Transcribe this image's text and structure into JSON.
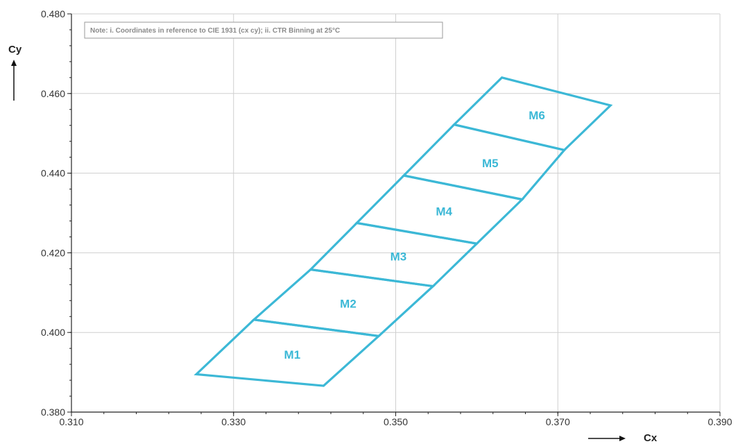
{
  "chart_data": {
    "type": "polygon-bins",
    "note": "Note: i. Coordinates in reference to CIE 1931 (cx cy); ii. CTR Binning at 25°C",
    "xlabel": "Cx",
    "ylabel": "Cy",
    "xlim": [
      0.31,
      0.39
    ],
    "ylim": [
      0.38,
      0.48
    ],
    "x_ticks": [
      "0.310",
      "0.330",
      "0.350",
      "0.370",
      "0.390"
    ],
    "y_ticks": [
      "0.380",
      "0.400",
      "0.420",
      "0.440",
      "0.460",
      "0.480"
    ],
    "grid": true,
    "color": "#3cb8d6",
    "bins": [
      {
        "name": "M1",
        "corners": [
          [
            0.3254,
            0.3895
          ],
          [
            0.3325,
            0.4032
          ],
          [
            0.3479,
            0.3991
          ],
          [
            0.3411,
            0.3866
          ]
        ]
      },
      {
        "name": "M2",
        "corners": [
          [
            0.3325,
            0.4032
          ],
          [
            0.3395,
            0.4158
          ],
          [
            0.3546,
            0.4116
          ],
          [
            0.3479,
            0.3991
          ]
        ]
      },
      {
        "name": "M3",
        "corners": [
          [
            0.3395,
            0.4158
          ],
          [
            0.3452,
            0.4275
          ],
          [
            0.36,
            0.4223
          ],
          [
            0.3546,
            0.4116
          ]
        ]
      },
      {
        "name": "M4",
        "corners": [
          [
            0.3452,
            0.4275
          ],
          [
            0.351,
            0.4394
          ],
          [
            0.3656,
            0.4334
          ],
          [
            0.36,
            0.4223
          ]
        ]
      },
      {
        "name": "M5",
        "corners": [
          [
            0.351,
            0.4394
          ],
          [
            0.3572,
            0.4522
          ],
          [
            0.3708,
            0.4458
          ],
          [
            0.3656,
            0.4334
          ]
        ]
      },
      {
        "name": "M6",
        "corners": [
          [
            0.3572,
            0.4522
          ],
          [
            0.3631,
            0.464
          ],
          [
            0.3765,
            0.457
          ],
          [
            0.3708,
            0.4458
          ]
        ]
      }
    ]
  }
}
